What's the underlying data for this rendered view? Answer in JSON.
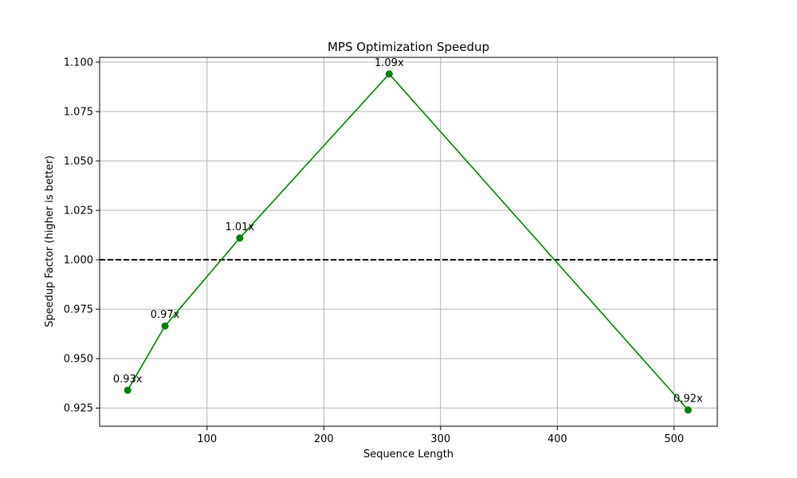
{
  "chart_data": {
    "type": "line",
    "title": "MPS Optimization Speedup",
    "xlabel": "Sequence Length",
    "ylabel": "Speedup Factor (higher is better)",
    "xlim": [
      8,
      537
    ],
    "ylim": [
      0.9158,
      1.1024
    ],
    "xticks": [
      100,
      200,
      300,
      400,
      500
    ],
    "yticks": [
      0.925,
      0.95,
      0.975,
      1.0,
      1.025,
      1.05,
      1.075,
      1.1
    ],
    "grid": true,
    "series": [
      {
        "x": [
          32,
          64,
          128,
          256,
          512
        ],
        "values": [
          0.934,
          0.9665,
          1.011,
          1.094,
          0.924
        ],
        "labels": [
          "0.93x",
          "0.97x",
          "1.01x",
          "1.09x",
          "0.92x"
        ],
        "color": "#008000",
        "marker": "circle"
      }
    ],
    "reference_lines": [
      {
        "y": 1.0,
        "style": "dashed",
        "color": "#000000"
      }
    ]
  }
}
